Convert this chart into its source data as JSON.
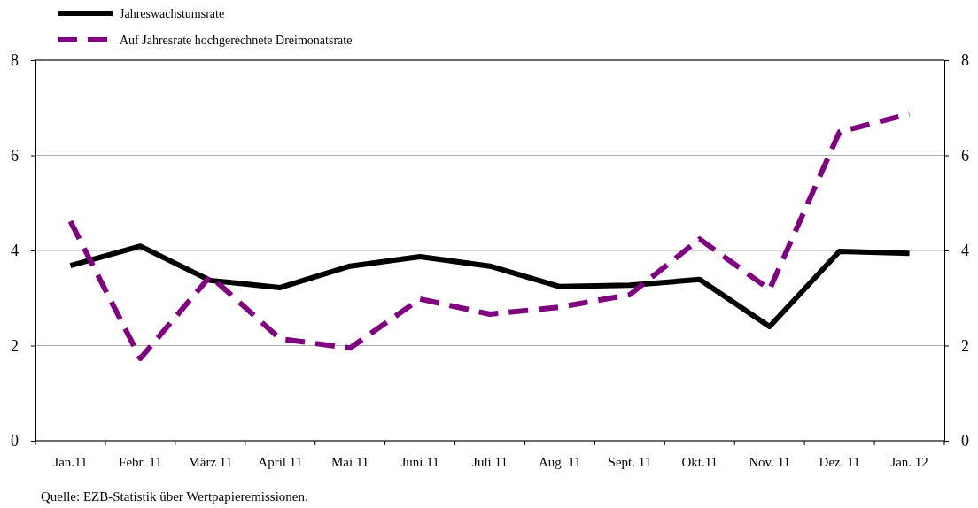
{
  "chart_data": {
    "type": "line",
    "categories": [
      "Jan.11",
      "Febr. 11",
      "März 11",
      "April 11",
      "Mai 11",
      "Juni 11",
      "Juli 11",
      "Aug. 11",
      "Sept. 11",
      "Okt.11",
      "Nov. 11",
      "Dez. 11",
      "Jan. 12"
    ],
    "series": [
      {
        "name": "Jahreswachstumsrate",
        "color": "#000000",
        "line_style": "solid",
        "values": [
          3.68,
          4.09,
          3.37,
          3.22,
          3.67,
          3.87,
          3.67,
          3.24,
          3.27,
          3.39,
          2.4,
          3.98,
          3.94
        ]
      },
      {
        "name": "Auf Jahresrate hochgerechnete Dreimonatsrate",
        "color": "#800080",
        "line_style": "dashed",
        "values": [
          4.61,
          1.73,
          3.46,
          2.14,
          1.95,
          2.98,
          2.66,
          2.81,
          3.07,
          4.24,
          3.18,
          6.49,
          6.87
        ]
      }
    ],
    "ylim": [
      0,
      8
    ],
    "yticks": [
      0,
      2,
      4,
      6,
      8
    ],
    "y2lim": [
      0,
      8
    ],
    "y2ticks": [
      0,
      2,
      4,
      6,
      8
    ],
    "grid": "y",
    "legend": "top left",
    "marker": "none",
    "annotations": [
      "Quelle: EZB-Statistik über Wertpapieremissionen."
    ]
  }
}
